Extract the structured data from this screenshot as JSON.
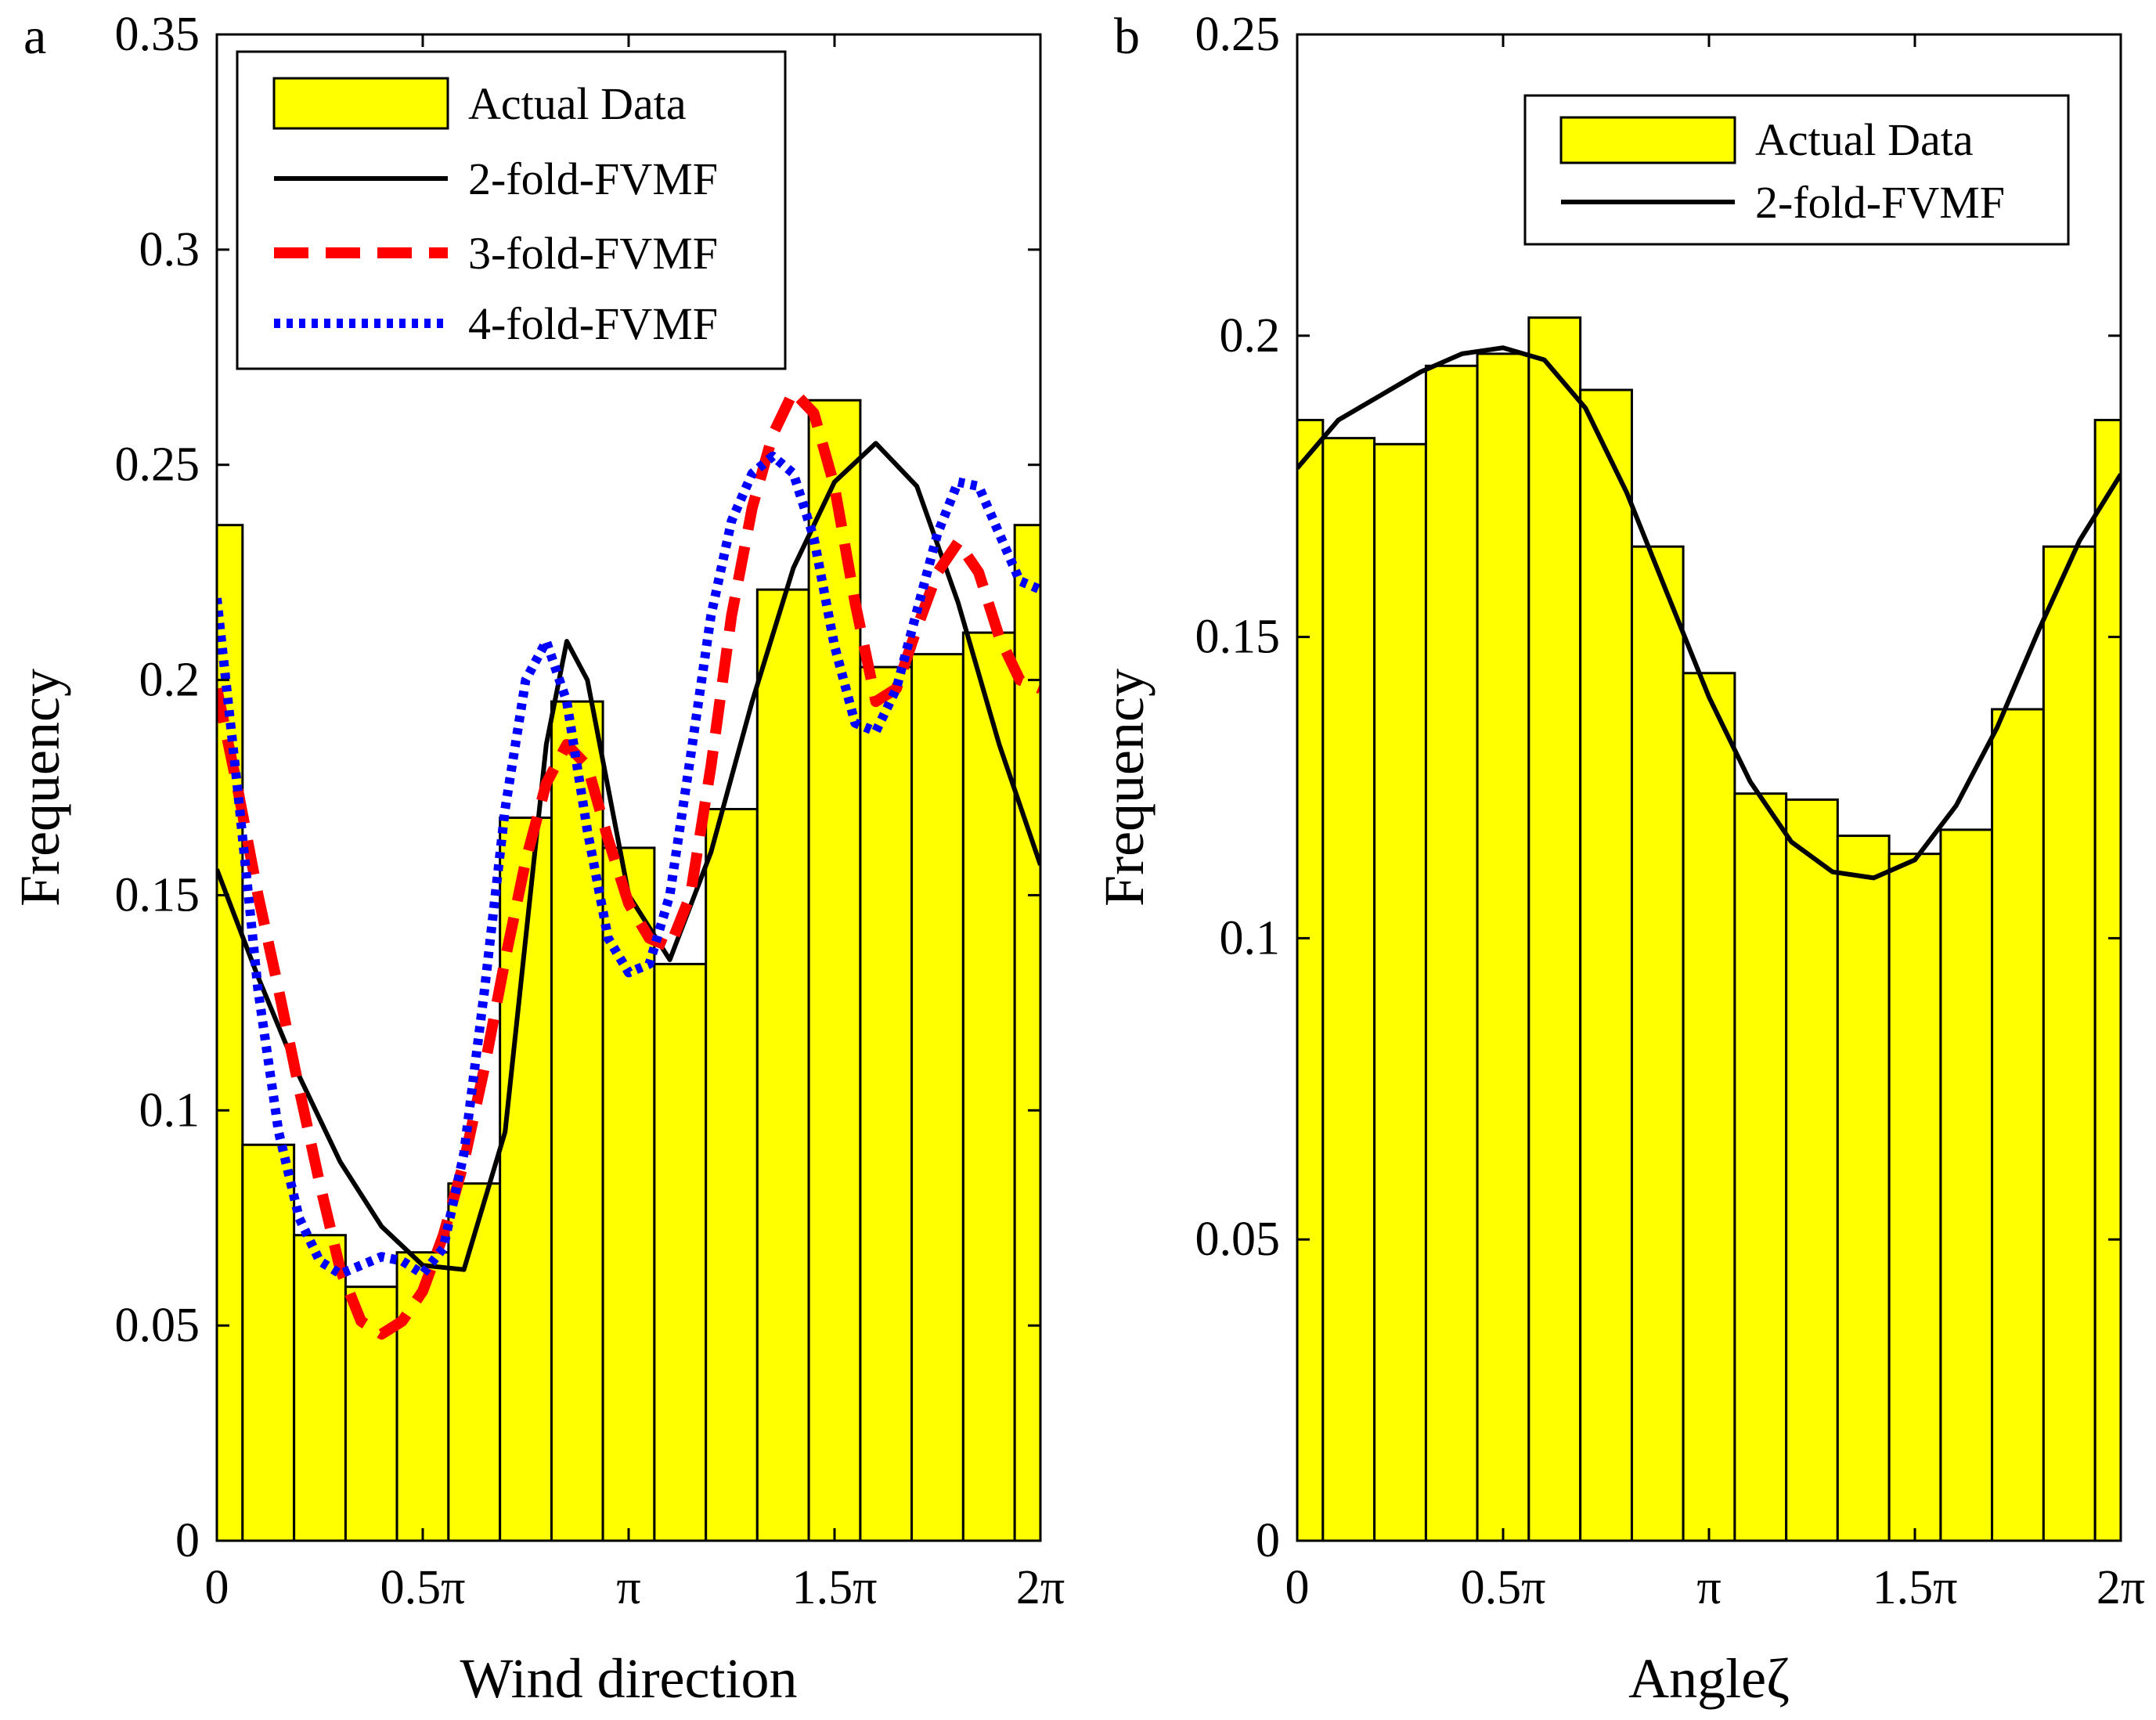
{
  "chart_data": [
    {
      "type": "bar",
      "panel_label": "a",
      "xlabel": "Wind direction",
      "ylabel": "Frequency",
      "xlim": [
        0,
        6.283185
      ],
      "ylim": [
        0,
        0.35
      ],
      "x_ticks": [
        {
          "value": 0,
          "label": "0"
        },
        {
          "value": 1.570796,
          "label": "0.5π"
        },
        {
          "value": 3.141593,
          "label": "π"
        },
        {
          "value": 4.712389,
          "label": "1.5π"
        },
        {
          "value": 6.283185,
          "label": "2π"
        }
      ],
      "y_ticks": [
        {
          "value": 0,
          "label": "0"
        },
        {
          "value": 0.05,
          "label": "0.05"
        },
        {
          "value": 0.1,
          "label": "0.1"
        },
        {
          "value": 0.15,
          "label": "0.15"
        },
        {
          "value": 0.2,
          "label": "0.2"
        },
        {
          "value": 0.25,
          "label": "0.25"
        },
        {
          "value": 0.3,
          "label": "0.3"
        },
        {
          "value": 0.35,
          "label": "0.35"
        }
      ],
      "bar_color": "#ffff00",
      "bar_edges": [
        0,
        0.196,
        0.589,
        0.982,
        1.374,
        1.767,
        2.16,
        2.553,
        2.945,
        3.338,
        3.731,
        4.123,
        4.516,
        4.909,
        5.301,
        5.694,
        6.087,
        6.283
      ],
      "bar_values": [
        0.236,
        0.092,
        0.071,
        0.059,
        0.067,
        0.083,
        0.168,
        0.195,
        0.161,
        0.134,
        0.17,
        0.221,
        0.265,
        0.203,
        0.206,
        0.211,
        0.236
      ],
      "legend": {
        "position": "top-left",
        "entries": [
          {
            "label": "Actual Data",
            "kind": "patch",
            "color": "#ffff00"
          },
          {
            "label": "2-fold-FVMF",
            "kind": "solid",
            "color": "#000000"
          },
          {
            "label": "3-fold-FVMF",
            "kind": "dashed",
            "color": "#ff0000"
          },
          {
            "label": "4-fold-FVMF",
            "kind": "dotted",
            "color": "#0000ff"
          }
        ]
      },
      "series": [
        {
          "name": "2-fold-FVMF",
          "color": "#000000",
          "style": "solid",
          "x": [
            0,
            0.314,
            0.628,
            0.942,
            1.257,
            1.571,
            1.885,
            2.199,
            2.513,
            2.67,
            2.827,
            3.142,
            3.456,
            3.77,
            4.084,
            4.398,
            4.712,
            5.027,
            5.341,
            5.655,
            5.969,
            6.283
          ],
          "y": [
            0.156,
            0.131,
            0.108,
            0.088,
            0.073,
            0.064,
            0.063,
            0.095,
            0.185,
            0.209,
            0.2,
            0.15,
            0.135,
            0.16,
            0.195,
            0.226,
            0.246,
            0.255,
            0.245,
            0.218,
            0.185,
            0.157
          ]
        },
        {
          "name": "3-fold-FVMF",
          "color": "#ff0000",
          "style": "dashed",
          "x": [
            0,
            0.157,
            0.314,
            0.471,
            0.628,
            0.785,
            0.942,
            1.1,
            1.257,
            1.414,
            1.571,
            1.728,
            1.885,
            2.042,
            2.199,
            2.356,
            2.513,
            2.67,
            2.827,
            2.985,
            3.142,
            3.299,
            3.456,
            3.613,
            3.77,
            3.927,
            4.084,
            4.241,
            4.398,
            4.555,
            4.712,
            4.869,
            5.027,
            5.184,
            5.341,
            5.498,
            5.655,
            5.812,
            5.969,
            6.126,
            6.283
          ],
          "y": [
            0.198,
            0.175,
            0.15,
            0.128,
            0.105,
            0.083,
            0.063,
            0.051,
            0.048,
            0.051,
            0.058,
            0.071,
            0.088,
            0.11,
            0.135,
            0.158,
            0.176,
            0.185,
            0.18,
            0.163,
            0.148,
            0.14,
            0.138,
            0.15,
            0.18,
            0.215,
            0.24,
            0.257,
            0.267,
            0.262,
            0.245,
            0.218,
            0.195,
            0.198,
            0.212,
            0.225,
            0.232,
            0.225,
            0.21,
            0.2,
            0.198
          ]
        },
        {
          "name": "4-fold-FVMF",
          "color": "#0000ff",
          "style": "dotted",
          "x": [
            0,
            0.157,
            0.314,
            0.471,
            0.628,
            0.785,
            0.942,
            1.1,
            1.257,
            1.414,
            1.571,
            1.728,
            1.885,
            2.042,
            2.199,
            2.356,
            2.513,
            2.67,
            2.827,
            2.985,
            3.142,
            3.299,
            3.456,
            3.613,
            3.77,
            3.927,
            4.084,
            4.241,
            4.398,
            4.555,
            4.712,
            4.869,
            5.027,
            5.184,
            5.341,
            5.498,
            5.655,
            5.812,
            5.969,
            6.126,
            6.283
          ],
          "y": [
            0.219,
            0.175,
            0.128,
            0.095,
            0.075,
            0.065,
            0.062,
            0.064,
            0.066,
            0.065,
            0.062,
            0.068,
            0.09,
            0.128,
            0.17,
            0.2,
            0.209,
            0.195,
            0.165,
            0.14,
            0.132,
            0.134,
            0.15,
            0.182,
            0.215,
            0.237,
            0.248,
            0.252,
            0.248,
            0.233,
            0.208,
            0.19,
            0.188,
            0.198,
            0.216,
            0.234,
            0.246,
            0.245,
            0.234,
            0.223,
            0.221
          ]
        }
      ]
    },
    {
      "type": "bar",
      "panel_label": "b",
      "xlabel": "Angleζ",
      "ylabel": "Frequency",
      "xlim": [
        0,
        6.283185
      ],
      "ylim": [
        0,
        0.25
      ],
      "x_ticks": [
        {
          "value": 0,
          "label": "0"
        },
        {
          "value": 1.570796,
          "label": "0.5π"
        },
        {
          "value": 3.141593,
          "label": "π"
        },
        {
          "value": 4.712389,
          "label": "1.5π"
        },
        {
          "value": 6.283185,
          "label": "2π"
        }
      ],
      "y_ticks": [
        {
          "value": 0,
          "label": "0"
        },
        {
          "value": 0.05,
          "label": "0.05"
        },
        {
          "value": 0.1,
          "label": "0.1"
        },
        {
          "value": 0.15,
          "label": "0.15"
        },
        {
          "value": 0.2,
          "label": "0.2"
        },
        {
          "value": 0.25,
          "label": "0.25"
        }
      ],
      "bar_color": "#ffff00",
      "bar_edges": [
        0,
        0.196,
        0.589,
        0.982,
        1.374,
        1.767,
        2.16,
        2.553,
        2.945,
        3.338,
        3.731,
        4.123,
        4.516,
        4.909,
        5.301,
        5.694,
        6.087,
        6.283
      ],
      "bar_values": [
        0.186,
        0.183,
        0.182,
        0.195,
        0.197,
        0.203,
        0.191,
        0.165,
        0.144,
        0.124,
        0.123,
        0.117,
        0.114,
        0.118,
        0.138,
        0.165,
        0.186
      ],
      "legend": {
        "position": "top-right",
        "entries": [
          {
            "label": "Actual Data",
            "kind": "patch",
            "color": "#ffff00"
          },
          {
            "label": "2-fold-FVMF",
            "kind": "solid",
            "color": "#000000"
          }
        ]
      },
      "series": [
        {
          "name": "2-fold-FVMF",
          "color": "#000000",
          "style": "solid",
          "x": [
            0,
            0.314,
            0.628,
            0.942,
            1.257,
            1.571,
            1.885,
            2.199,
            2.513,
            2.827,
            3.142,
            3.456,
            3.77,
            4.084,
            4.398,
            4.712,
            5.027,
            5.341,
            5.655,
            5.969,
            6.283
          ],
          "y": [
            0.178,
            0.186,
            0.19,
            0.194,
            0.197,
            0.198,
            0.196,
            0.188,
            0.174,
            0.157,
            0.14,
            0.126,
            0.116,
            0.111,
            0.11,
            0.113,
            0.122,
            0.135,
            0.151,
            0.166,
            0.177
          ]
        }
      ]
    }
  ]
}
